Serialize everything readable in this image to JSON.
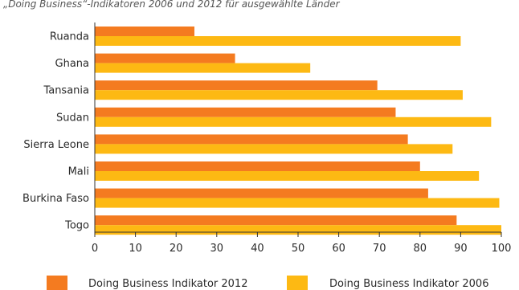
{
  "caption": "„Doing Business“-Indikatoren 2006 und 2012 für ausgewählte Länder",
  "chart_data": {
    "type": "bar",
    "orientation": "horizontal",
    "categories": [
      "Ruanda",
      "Ghana",
      "Tansania",
      "Sudan",
      "Sierra Leone",
      "Mali",
      "Burkina Faso",
      "Togo"
    ],
    "series": [
      {
        "name": "Doing Business Indikator 2012",
        "color": "#f47b20",
        "values": [
          24.5,
          34.5,
          69.5,
          74,
          77,
          80,
          82,
          89
        ]
      },
      {
        "name": "Doing Business Indikator 2006",
        "color": "#fdb913",
        "values": [
          90,
          53,
          90.5,
          97.5,
          88,
          94.5,
          99.5,
          100
        ]
      }
    ],
    "xlim": [
      0,
      100
    ],
    "xticks": [
      "0",
      "10",
      "20",
      "30",
      "40",
      "50",
      "60",
      "70",
      "80",
      "90",
      "100"
    ],
    "xlabel": "",
    "ylabel": "",
    "grid": false,
    "legend_position": "bottom"
  }
}
